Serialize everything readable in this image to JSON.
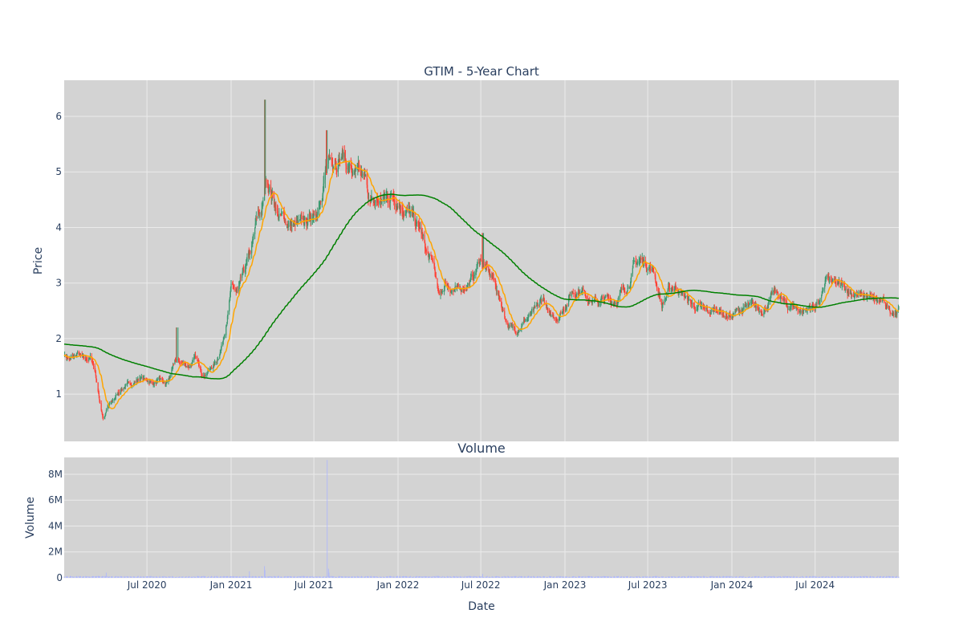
{
  "chart_data": [
    {
      "type": "candlestick",
      "title": "GTIM - 5-Year Chart",
      "ylabel": "Price",
      "ylim": [
        0.15,
        6.65
      ],
      "yticks": [
        1,
        2,
        3,
        4,
        5,
        6
      ],
      "date_range": [
        "2020-01-02",
        "2024-12-31"
      ],
      "grid": true,
      "colors": {
        "up": "#3d9970",
        "down": "#ff4136",
        "short_ma": "#ffa500",
        "long_ma": "#008000",
        "background": "#d3d3d3",
        "gridline": "#ebebeb"
      },
      "price_path": [
        [
          "2020-01-02",
          1.72
        ],
        [
          "2020-01-15",
          1.62
        ],
        [
          "2020-02-01",
          1.72
        ],
        [
          "2020-02-15",
          1.6
        ],
        [
          "2020-03-01",
          1.65
        ],
        [
          "2020-03-10",
          1.4
        ],
        [
          "2020-03-20",
          0.85
        ],
        [
          "2020-03-28",
          0.55
        ],
        [
          "2020-04-05",
          0.75
        ],
        [
          "2020-04-20",
          0.9
        ],
        [
          "2020-05-01",
          1.05
        ],
        [
          "2020-05-15",
          1.15
        ],
        [
          "2020-06-01",
          1.2
        ],
        [
          "2020-06-15",
          1.3
        ],
        [
          "2020-07-01",
          1.25
        ],
        [
          "2020-07-15",
          1.2
        ],
        [
          "2020-08-01",
          1.25
        ],
        [
          "2020-08-10",
          1.15
        ],
        [
          "2020-08-20",
          1.3
        ],
        [
          "2020-09-01",
          1.6
        ],
        [
          "2020-09-15",
          1.55
        ],
        [
          "2020-10-01",
          1.5
        ],
        [
          "2020-10-15",
          1.65
        ],
        [
          "2020-11-01",
          1.35
        ],
        [
          "2020-11-15",
          1.45
        ],
        [
          "2020-12-01",
          1.6
        ],
        [
          "2020-12-15",
          2.0
        ],
        [
          "2021-01-01",
          2.9
        ],
        [
          "2021-01-15",
          2.8
        ],
        [
          "2021-02-01",
          3.2
        ],
        [
          "2021-02-15",
          3.6
        ],
        [
          "2021-03-01",
          4.2
        ],
        [
          "2021-03-10",
          4.3
        ],
        [
          "2021-03-20",
          4.9
        ],
        [
          "2021-04-01",
          4.6
        ],
        [
          "2021-04-15",
          4.2
        ],
        [
          "2021-05-01",
          4.1
        ],
        [
          "2021-05-15",
          4.05
        ],
        [
          "2021-06-01",
          4.0
        ],
        [
          "2021-06-20",
          4.1
        ],
        [
          "2021-07-05",
          4.4
        ],
        [
          "2021-07-20",
          4.5
        ],
        [
          "2021-08-01",
          5.2
        ],
        [
          "2021-08-15",
          5.3
        ],
        [
          "2021-09-01",
          5.35
        ],
        [
          "2021-09-15",
          5.1
        ],
        [
          "2021-10-01",
          4.9
        ],
        [
          "2021-10-20",
          4.8
        ],
        [
          "2021-11-05",
          4.4
        ],
        [
          "2021-11-20",
          4.45
        ],
        [
          "2021-12-05",
          4.5
        ],
        [
          "2021-12-20",
          4.6
        ],
        [
          "2022-01-05",
          4.5
        ],
        [
          "2022-01-20",
          4.35
        ],
        [
          "2022-02-05",
          4.1
        ],
        [
          "2022-02-20",
          3.9
        ],
        [
          "2022-03-05",
          3.5
        ],
        [
          "2022-03-20",
          3.3
        ],
        [
          "2022-04-01",
          2.7
        ],
        [
          "2022-04-15",
          3.0
        ],
        [
          "2022-05-01",
          2.9
        ],
        [
          "2022-05-15",
          2.85
        ],
        [
          "2022-06-01",
          3.0
        ],
        [
          "2022-06-15",
          3.1
        ],
        [
          "2022-07-01",
          3.45
        ],
        [
          "2022-07-15",
          3.2
        ],
        [
          "2022-08-01",
          3.0
        ],
        [
          "2022-08-15",
          2.6
        ],
        [
          "2022-09-01",
          2.2
        ],
        [
          "2022-09-15",
          2.15
        ],
        [
          "2022-10-01",
          2.3
        ],
        [
          "2022-10-15",
          2.4
        ],
        [
          "2022-11-01",
          2.5
        ],
        [
          "2022-11-15",
          2.7
        ],
        [
          "2022-12-01",
          2.35
        ],
        [
          "2022-12-15",
          2.4
        ],
        [
          "2023-01-01",
          2.6
        ],
        [
          "2023-01-15",
          2.85
        ],
        [
          "2023-02-01",
          2.9
        ],
        [
          "2023-02-15",
          2.85
        ],
        [
          "2023-03-01",
          2.7
        ],
        [
          "2023-03-15",
          2.65
        ],
        [
          "2023-04-01",
          2.7
        ],
        [
          "2023-04-15",
          2.65
        ],
        [
          "2023-05-01",
          2.8
        ],
        [
          "2023-05-15",
          2.9
        ],
        [
          "2023-06-01",
          3.3
        ],
        [
          "2023-06-15",
          3.4
        ],
        [
          "2023-07-01",
          3.35
        ],
        [
          "2023-07-15",
          3.2
        ],
        [
          "2023-08-01",
          2.6
        ],
        [
          "2023-08-15",
          2.85
        ],
        [
          "2023-09-01",
          2.95
        ],
        [
          "2023-09-15",
          2.8
        ],
        [
          "2023-10-01",
          2.65
        ],
        [
          "2023-10-15",
          2.55
        ],
        [
          "2023-11-01",
          2.5
        ],
        [
          "2023-11-15",
          2.45
        ],
        [
          "2023-12-01",
          2.55
        ],
        [
          "2023-12-15",
          2.45
        ],
        [
          "2024-01-01",
          2.4
        ],
        [
          "2024-01-15",
          2.5
        ],
        [
          "2024-02-01",
          2.55
        ],
        [
          "2024-02-15",
          2.55
        ],
        [
          "2024-03-01",
          2.5
        ],
        [
          "2024-03-15",
          2.6
        ],
        [
          "2024-04-01",
          2.8
        ],
        [
          "2024-04-15",
          2.75
        ],
        [
          "2024-05-01",
          2.55
        ],
        [
          "2024-05-15",
          2.6
        ],
        [
          "2024-06-01",
          2.5
        ],
        [
          "2024-06-15",
          2.55
        ],
        [
          "2024-07-01",
          2.6
        ],
        [
          "2024-07-15",
          2.7
        ],
        [
          "2024-07-25",
          3.1
        ],
        [
          "2024-08-01",
          3.0
        ],
        [
          "2024-08-15",
          2.95
        ],
        [
          "2024-09-01",
          2.9
        ],
        [
          "2024-09-15",
          2.85
        ],
        [
          "2024-10-01",
          2.8
        ],
        [
          "2024-10-15",
          2.75
        ],
        [
          "2024-11-01",
          2.7
        ],
        [
          "2024-11-15",
          2.65
        ],
        [
          "2024-12-01",
          2.6
        ],
        [
          "2024-12-15",
          2.5
        ],
        [
          "2024-12-31",
          2.55
        ]
      ],
      "spikes": [
        [
          "2020-09-05",
          2.2
        ],
        [
          "2021-03-15",
          6.3
        ],
        [
          "2021-07-30",
          5.75
        ],
        [
          "2022-07-05",
          3.9
        ]
      ]
    },
    {
      "type": "bar",
      "title": "Volume",
      "ylabel": "Volume",
      "xlabel": "Date",
      "ylim": [
        0,
        9300000
      ],
      "yticks": [
        0,
        2000000,
        4000000,
        6000000,
        8000000
      ],
      "ytick_labels": [
        "0",
        "2M",
        "4M",
        "6M",
        "8M"
      ],
      "xticks": [
        "2020-07-01",
        "2021-01-01",
        "2021-07-01",
        "2022-01-01",
        "2022-07-01",
        "2023-01-01",
        "2023-07-01",
        "2024-01-01",
        "2024-07-01"
      ],
      "xtick_labels": [
        "Jul 2020",
        "Jan 2021",
        "Jul 2021",
        "Jan 2022",
        "Jul 2022",
        "Jan 2023",
        "Jul 2023",
        "Jan 2024",
        "Jul 2024"
      ],
      "bar_color": "#aab4ff",
      "baseline_volume": 90000,
      "spikes": [
        [
          "2020-04-03",
          400000
        ],
        [
          "2020-09-05",
          600000
        ],
        [
          "2020-12-20",
          350000
        ],
        [
          "2021-02-10",
          500000
        ],
        [
          "2021-03-15",
          900000
        ],
        [
          "2021-03-16",
          600000
        ],
        [
          "2021-07-30",
          9100000
        ],
        [
          "2021-08-02",
          700000
        ],
        [
          "2021-08-03",
          400000
        ],
        [
          "2022-07-05",
          300000
        ]
      ]
    }
  ]
}
